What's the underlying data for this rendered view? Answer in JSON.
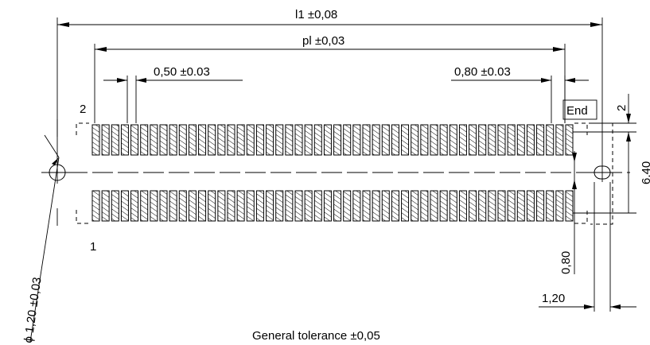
{
  "drawing": {
    "dimensions": {
      "l1": "l1 ±0,08",
      "pl": "pl ±0,03",
      "pitch": "0,50 ±0.03",
      "end_gap": "0,80 ±0.03",
      "end_offset": "2",
      "width": "6,40",
      "hole_offset": "0,80",
      "hole_width": "1,20",
      "diameter": "ϕ 1,20 ±0,03"
    },
    "labels": {
      "pin_2": "2",
      "pin_1": "1",
      "end": "End"
    },
    "note": "General tolerance ±0,05",
    "pads_per_row": 50
  }
}
